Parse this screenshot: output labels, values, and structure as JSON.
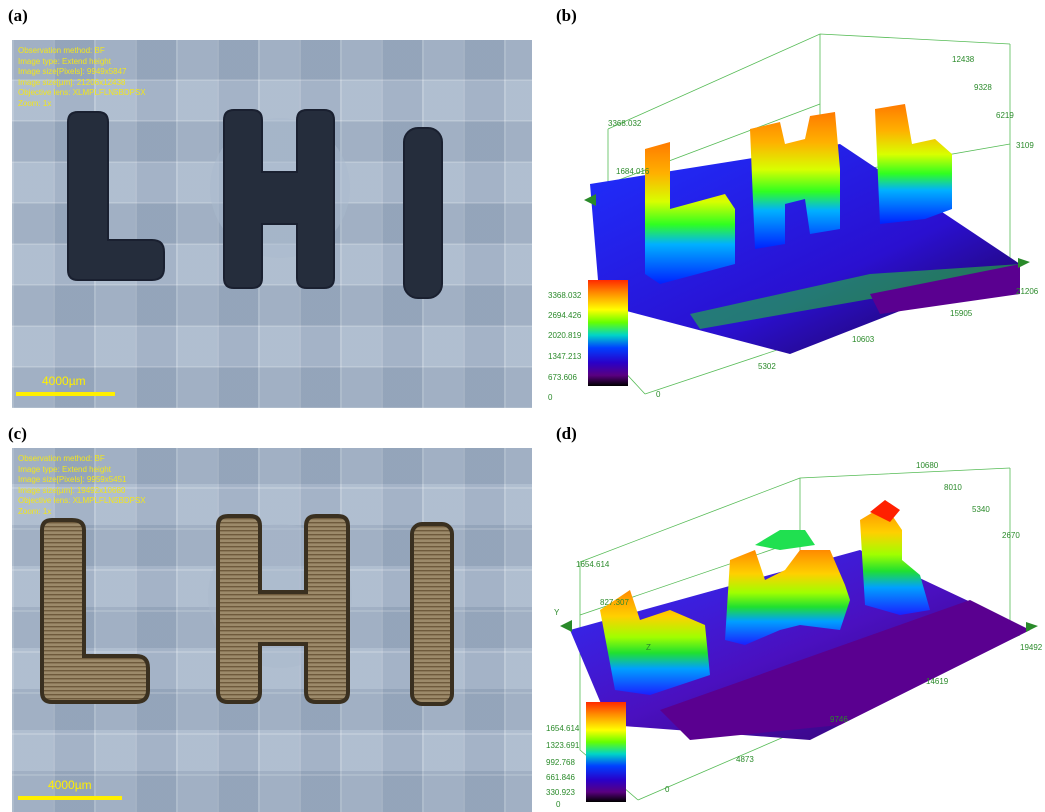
{
  "panels": {
    "a": {
      "label": "(a)",
      "meta": [
        "Observation method: BF",
        "Image type: Extend height",
        "Image size[Pixels]: 9949x5847",
        "Image size[µm]: 21206x12438",
        "Objective lens: XLMPLFLN5BDPSX",
        "Zoom: 1x"
      ],
      "scale": "4000µm",
      "letters": [
        "L",
        "H",
        "I"
      ]
    },
    "b": {
      "label": "(b)",
      "z_axis_ticks": [
        "3368.032",
        "1684.016"
      ],
      "y_axis_ticks": [
        "12438",
        "9328",
        "6219",
        "3109"
      ],
      "x_axis_ticks": [
        "0",
        "5302",
        "10603",
        "15905",
        "21206"
      ],
      "colorbar_ticks": [
        "3368.032",
        "2694.426",
        "2020.819",
        "1347.213",
        "673.606",
        "0"
      ]
    },
    "c": {
      "label": "(c)",
      "meta": [
        "Observation method: BF",
        "Image type: Extend height",
        "Image size[Pixels]: 9959x5451",
        "Image size[µm]: 19492x10680",
        "Objective lens: XLMPLFLN5BDPSX",
        "Zoom: 1x"
      ],
      "scale": "4000µm",
      "letters": [
        "L",
        "H",
        "I"
      ]
    },
    "d": {
      "label": "(d)",
      "z_axis_ticks": [
        "1654.614",
        "827.307"
      ],
      "y_axis_ticks": [
        "10680",
        "8010",
        "5340",
        "2670"
      ],
      "x_axis_ticks": [
        "0",
        "4873",
        "9746",
        "14619",
        "19492"
      ],
      "colorbar_ticks": [
        "1654.614",
        "1323.691",
        "992.768",
        "661.846",
        "330.923",
        "0"
      ],
      "axis_letters": [
        "Y",
        "Z"
      ]
    }
  }
}
